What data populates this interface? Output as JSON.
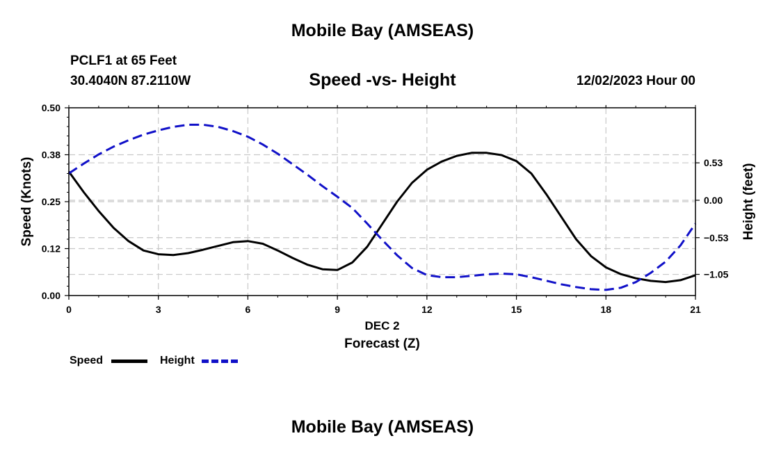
{
  "header": {
    "title": "Mobile Bay (AMSEAS)",
    "station": "PCLF1 at 65 Feet",
    "coordinates": "30.4040N  87.2110W",
    "datestamp": "12/02/2023 Hour 00",
    "footer_title": "Mobile Bay (AMSEAS)"
  },
  "chart_data": {
    "type": "line",
    "title": "Speed -vs- Height",
    "xlabel": "Forecast (Z)",
    "x_date_label": "DEC 2",
    "ylabel_left": "Speed (Knots)",
    "ylabel_right": "Height (feet)",
    "xlim": [
      0,
      21
    ],
    "x_ticks": [
      0,
      3,
      6,
      9,
      12,
      15,
      18,
      21
    ],
    "x_tick_labels": [
      "0",
      "3",
      "6",
      "9",
      "12",
      "15",
      "18",
      "21"
    ],
    "ylim_left": [
      0,
      0.5
    ],
    "y_left_ticks": [
      0,
      0.125,
      0.25,
      0.375,
      0.5
    ],
    "y_left_tick_labels": [
      "0.00",
      "0.12",
      "0.25",
      "0.38",
      "0.50"
    ],
    "ylim_right": [
      -1.35,
      1.31
    ],
    "y_right_ticks": [
      -1.05,
      -0.53,
      0,
      0.53
    ],
    "y_right_tick_labels": [
      "−1.05",
      "−0.53",
      "0.00",
      "0.53"
    ],
    "grid": true,
    "legend_position": "bottom-left",
    "series": [
      {
        "name": "Speed",
        "axis": "left",
        "color": "#000000",
        "style": "solid",
        "x": [
          0,
          0.5,
          1,
          1.5,
          2,
          2.5,
          3,
          3.5,
          4,
          4.5,
          5,
          5.5,
          6,
          6.5,
          7,
          7.5,
          8,
          8.5,
          9,
          9.5,
          10,
          10.5,
          11,
          11.5,
          12,
          12.5,
          13,
          13.5,
          14,
          14.5,
          15,
          15.5,
          16,
          16.5,
          17,
          17.5,
          18,
          18.5,
          19,
          19.5,
          20,
          20.5,
          21
        ],
        "values": [
          0.33,
          0.275,
          0.225,
          0.18,
          0.145,
          0.12,
          0.11,
          0.108,
          0.113,
          0.122,
          0.132,
          0.142,
          0.145,
          0.138,
          0.12,
          0.1,
          0.082,
          0.07,
          0.068,
          0.088,
          0.13,
          0.19,
          0.25,
          0.3,
          0.335,
          0.357,
          0.372,
          0.38,
          0.38,
          0.374,
          0.358,
          0.325,
          0.27,
          0.21,
          0.15,
          0.105,
          0.075,
          0.057,
          0.046,
          0.039,
          0.036,
          0.041,
          0.054
        ]
      },
      {
        "name": "Height",
        "axis": "right",
        "color": "#1010c8",
        "style": "dashed",
        "x": [
          0,
          0.5,
          1,
          1.5,
          2,
          2.5,
          3,
          3.5,
          4,
          4.5,
          5,
          5.5,
          6,
          6.5,
          7,
          7.5,
          8,
          8.5,
          9,
          9.5,
          10,
          10.5,
          11,
          11.5,
          12,
          12.5,
          13,
          13.5,
          14,
          14.5,
          15,
          15.5,
          16,
          16.5,
          17,
          17.5,
          18,
          18.5,
          19,
          19.5,
          20,
          20.5,
          21
        ],
        "values": [
          0.38,
          0.52,
          0.65,
          0.76,
          0.85,
          0.93,
          0.99,
          1.04,
          1.07,
          1.07,
          1.04,
          0.98,
          0.9,
          0.79,
          0.66,
          0.51,
          0.36,
          0.2,
          0.05,
          -0.11,
          -0.33,
          -0.56,
          -0.78,
          -0.96,
          -1.06,
          -1.09,
          -1.09,
          -1.07,
          -1.05,
          -1.04,
          -1.05,
          -1.09,
          -1.14,
          -1.19,
          -1.23,
          -1.26,
          -1.27,
          -1.24,
          -1.16,
          -1.03,
          -0.87,
          -0.64,
          -0.33
        ]
      }
    ]
  }
}
